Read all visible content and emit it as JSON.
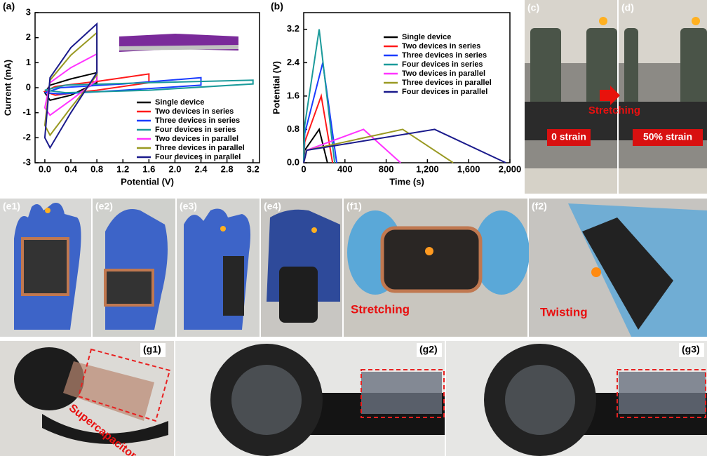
{
  "chart_data": [
    {
      "type": "line",
      "panel_label": "(a)",
      "xlabel": "Potential (V)",
      "ylabel": "Current (mA)",
      "closed": true,
      "legend": "lower right",
      "xlim": [
        -0.15,
        3.3
      ],
      "ylim": [
        -3,
        3
      ],
      "xticks": [
        {
          "value": 0,
          "label": "0.0"
        },
        0.4,
        0.8,
        1.2,
        1.6,
        {
          "value": 2,
          "label": "2.0"
        },
        2.4,
        2.8,
        3.2
      ],
      "yticks": [
        -3,
        -2,
        -1,
        0,
        1,
        2,
        3
      ],
      "series": [
        {
          "name": "Single device",
          "color": "#000000",
          "x": [
            0,
            0.08,
            0.4,
            0.8,
            0.8,
            0.4,
            0.08,
            0
          ],
          "values": [
            -0.2,
            0.1,
            0.35,
            0.6,
            0.2,
            -0.3,
            -0.5,
            -0.2
          ]
        },
        {
          "name": "Two devices in series",
          "color": "#ff1a1a",
          "x": [
            0,
            0.16,
            0.8,
            1.6,
            1.6,
            0.8,
            0.16,
            0
          ],
          "values": [
            -0.15,
            0.05,
            0.25,
            0.55,
            0.2,
            -0.1,
            -0.3,
            -0.15
          ]
        },
        {
          "name": "Three devices in series",
          "color": "#1a3cff",
          "x": [
            0,
            0.24,
            1.2,
            2.4,
            2.4,
            1.2,
            0.24,
            0
          ],
          "values": [
            -0.2,
            0.0,
            0.15,
            0.4,
            0.1,
            -0.1,
            -0.25,
            -0.2
          ]
        },
        {
          "name": "Four devices in series",
          "color": "#1a9a9a",
          "x": [
            0,
            0.32,
            1.6,
            3.2,
            3.2,
            1.6,
            0.32,
            0
          ],
          "values": [
            -0.1,
            0.1,
            0.2,
            0.3,
            0.15,
            -0.1,
            -0.2,
            -0.1
          ]
        },
        {
          "name": "Two devices in parallel",
          "color": "#ff33ff",
          "x": [
            0,
            0.08,
            0.4,
            0.8,
            0.8,
            0.4,
            0.08,
            0
          ],
          "values": [
            -0.8,
            0.2,
            0.8,
            1.35,
            0.3,
            -0.5,
            -1.1,
            -0.8
          ]
        },
        {
          "name": "Three devices in parallel",
          "color": "#999922",
          "x": [
            0,
            0.08,
            0.4,
            0.8,
            0.8,
            0.4,
            0.08,
            0
          ],
          "values": [
            -1.5,
            0.3,
            1.3,
            2.2,
            0.5,
            -0.8,
            -1.9,
            -1.5
          ]
        },
        {
          "name": "Four devices in parallel",
          "color": "#1a1a8c",
          "x": [
            0,
            0.08,
            0.4,
            0.8,
            0.8,
            0.4,
            0.08,
            0
          ],
          "values": [
            -2.0,
            0.4,
            1.6,
            2.55,
            0.6,
            -1.0,
            -2.4,
            -2.0
          ]
        }
      ]
    },
    {
      "type": "line",
      "panel_label": "(b)",
      "xlabel": "Time (s)",
      "ylabel": "Potential (V)",
      "closed": false,
      "legend": "upper right",
      "xlim": [
        0,
        2000
      ],
      "ylim": [
        0,
        3.6
      ],
      "xticks": [
        0,
        400,
        800,
        {
          "value": 1200,
          "label": "1,200"
        },
        {
          "value": 1600,
          "label": "1,600"
        },
        {
          "value": 2000,
          "label": "2,000"
        }
      ],
      "yticks": [
        {
          "value": 0,
          "label": "0.0"
        },
        0.8,
        1.6,
        2.4,
        3.2
      ],
      "series": [
        {
          "name": "Single device",
          "color": "#000000",
          "x": [
            0,
            10,
            150,
            230
          ],
          "values": [
            0,
            0.3,
            0.8,
            0
          ]
        },
        {
          "name": "Two devices in series",
          "color": "#ff1a1a",
          "x": [
            0,
            10,
            170,
            280
          ],
          "values": [
            0,
            0.5,
            1.6,
            0
          ]
        },
        {
          "name": "Three devices in series",
          "color": "#1a3cff",
          "x": [
            0,
            10,
            185,
            320
          ],
          "values": [
            0,
            0.7,
            2.4,
            0
          ]
        },
        {
          "name": "Four devices in series",
          "color": "#1a9a9a",
          "x": [
            0,
            10,
            150,
            300
          ],
          "values": [
            0,
            0.9,
            3.2,
            0
          ]
        },
        {
          "name": "Two devices in parallel",
          "color": "#ff33ff",
          "x": [
            0,
            30,
            580,
            940
          ],
          "values": [
            0,
            0.3,
            0.8,
            0
          ]
        },
        {
          "name": "Three devices in parallel",
          "color": "#999922",
          "x": [
            0,
            30,
            960,
            1450
          ],
          "values": [
            0,
            0.3,
            0.8,
            0
          ]
        },
        {
          "name": "Four devices in parallel",
          "color": "#1a1a8c",
          "x": [
            0,
            30,
            1270,
            1960
          ],
          "values": [
            0,
            0.3,
            0.8,
            0
          ]
        }
      ]
    }
  ],
  "photos": [
    {
      "label": "(c)"
    },
    {
      "label": "(d)"
    },
    {
      "label": "(e1)"
    },
    {
      "label": "(e2)"
    },
    {
      "label": "(e3)"
    },
    {
      "label": "(e4)"
    },
    {
      "label": "(f1)"
    },
    {
      "label": "(f2)"
    },
    {
      "label": "(g1)"
    },
    {
      "label": "(g2)"
    },
    {
      "label": "(g3)"
    }
  ],
  "annotations": [
    {
      "text": "0 strain"
    },
    {
      "text": "50% strain"
    },
    {
      "text": "Stretching"
    },
    {
      "text": "Stretching"
    },
    {
      "text": "Twisting"
    },
    {
      "text": "Supercapacitor"
    }
  ]
}
